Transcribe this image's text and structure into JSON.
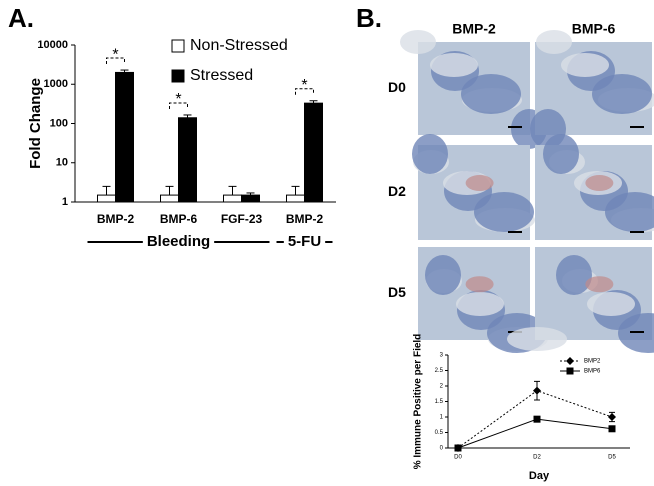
{
  "chart_data": [
    {
      "type": "bar",
      "panel_label": "A.",
      "y_label": "Fold Change",
      "log_scale": true,
      "categories": [
        "BMP-2",
        "BMP-6",
        "FGF-23",
        "BMP-2"
      ],
      "groups": [
        "Bleeding",
        "5-FU"
      ],
      "series": [
        {
          "name": "Non-Stressed",
          "color": "#ffffff",
          "values": [
            1.5,
            1.5,
            1.5,
            1.5
          ],
          "errors": [
            1,
            1,
            1,
            1
          ]
        },
        {
          "name": "Stressed",
          "color": "#000000",
          "values": [
            2000,
            140,
            1.5,
            330
          ],
          "errors": [
            300,
            25,
            0.2,
            50
          ]
        }
      ],
      "annotations": [
        {
          "text": "*",
          "category": 0
        },
        {
          "text": "*",
          "category": 1
        },
        {
          "text": "*",
          "category": 3
        }
      ],
      "ylim": [
        1,
        10000
      ],
      "yticks": [
        1,
        10,
        100,
        1000,
        10000
      ]
    },
    {
      "type": "line",
      "y_label": "% Immune Positive per Field",
      "x_label": "Day",
      "categories": [
        "D0",
        "D2",
        "D5"
      ],
      "series": [
        {
          "name": "BMP2",
          "color": "#000000",
          "line_style": "dotted",
          "marker": "diamond",
          "values": [
            0,
            1.85,
            1.0
          ],
          "errors": [
            0,
            0.3,
            0.15
          ]
        },
        {
          "name": "BMP6",
          "color": "#000000",
          "line_style": "solid",
          "marker": "square",
          "values": [
            0,
            0.93,
            0.62
          ],
          "errors": [
            0,
            0.05,
            0.03
          ]
        }
      ],
      "ylim": [
        0,
        3
      ],
      "yticks": [
        0,
        0.5,
        1,
        1.5,
        2,
        2.5,
        3
      ]
    }
  ],
  "images": {
    "panel_label": "B.",
    "columns": [
      "BMP-2",
      "BMP-6"
    ],
    "rows": [
      "D0",
      "D2",
      "D5"
    ]
  }
}
